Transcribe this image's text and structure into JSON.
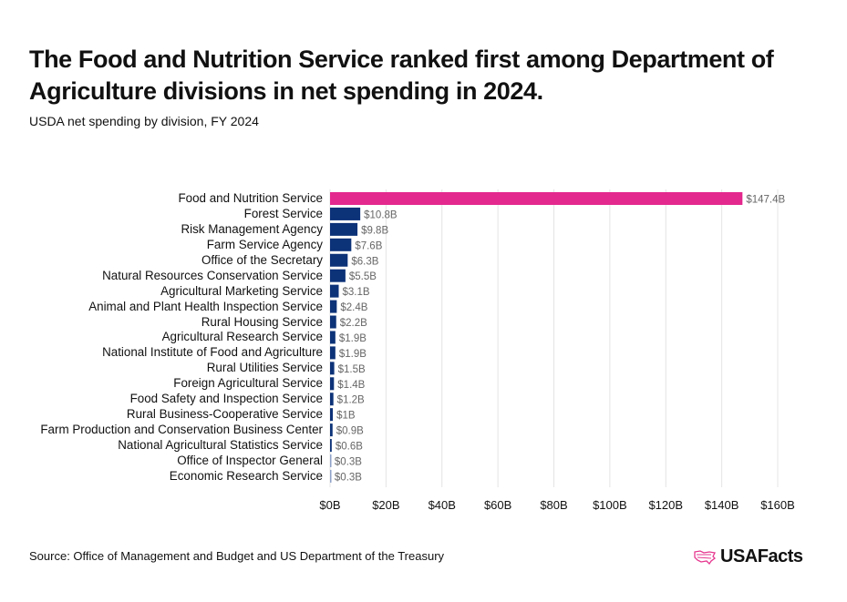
{
  "title": "The Food and Nutrition Service ranked first among Department of Agriculture divisions in net spending in 2024.",
  "subtitle": "USDA net spending by division, FY 2024",
  "source": "Source: Office of Management and Budget and US Department of the Treasury",
  "logo": {
    "text": "USAFacts",
    "icon": "us-map-outline-icon",
    "color": "#e6378f"
  },
  "chart_data": {
    "type": "bar",
    "orientation": "horizontal",
    "title": "",
    "xlabel": "",
    "ylabel": "",
    "xlim": [
      0,
      160
    ],
    "grid": "vertical",
    "x_ticks": [
      "$0B",
      "$20B",
      "$40B",
      "$60B",
      "$80B",
      "$100B",
      "$120B",
      "$140B",
      "$160B"
    ],
    "x_tick_values": [
      0,
      20,
      40,
      60,
      80,
      100,
      120,
      140,
      160
    ],
    "categories": [
      "Food and Nutrition Service",
      "Forest Service",
      "Risk Management Agency",
      "Farm Service Agency",
      "Office of the Secretary",
      "Natural Resources Conservation Service",
      "Agricultural Marketing Service",
      "Animal and Plant Health Inspection Service",
      "Rural Housing Service",
      "Agricultural Research Service",
      "National Institute of Food and Agriculture",
      "Rural Utilities Service",
      "Foreign Agricultural Service",
      "Food Safety and Inspection Service",
      "Rural Business-Cooperative Service",
      "Farm Production and Conservation Business Center",
      "National Agricultural Statistics Service",
      "Office of Inspector General",
      "Economic Research Service"
    ],
    "values": [
      147.4,
      10.8,
      9.8,
      7.6,
      6.3,
      5.5,
      3.1,
      2.4,
      2.2,
      1.9,
      1.9,
      1.5,
      1.4,
      1.2,
      1,
      0.9,
      0.6,
      0.3,
      0.3
    ],
    "data_labels": [
      "$147.4B",
      "$10.8B",
      "$9.8B",
      "$7.6B",
      "$6.3B",
      "$5.5B",
      "$3.1B",
      "$2.4B",
      "$2.2B",
      "$1.9B",
      "$1.9B",
      "$1.5B",
      "$1.4B",
      "$1.2B",
      "$1B",
      "$0.9B",
      "$0.6B",
      "$0.3B",
      "$0.3B"
    ],
    "colors": {
      "highlight": "#e3288e",
      "default": "#0c3278",
      "small": "#8ea2c9",
      "grid": "#e4e4e4",
      "label": "#666666"
    }
  }
}
